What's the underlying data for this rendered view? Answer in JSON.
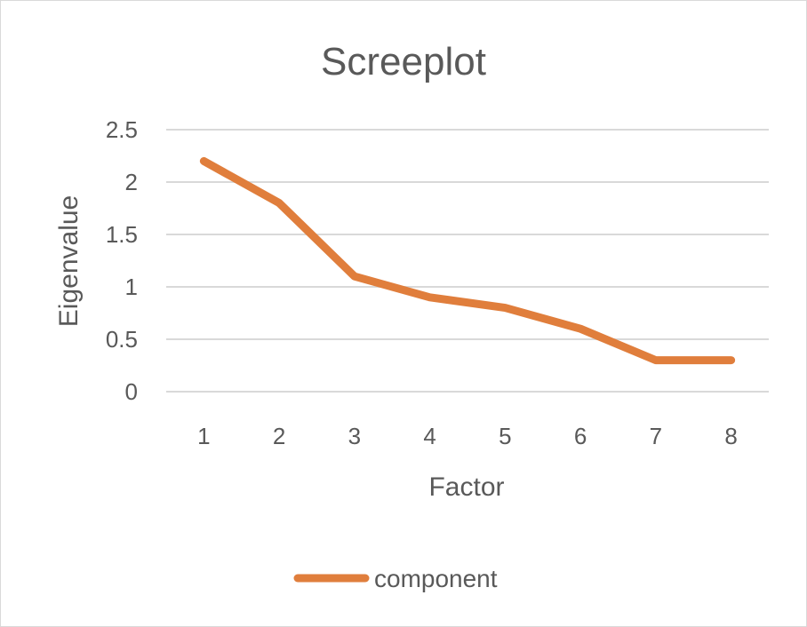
{
  "chart_data": {
    "type": "line",
    "title": "Screeplot",
    "xlabel": "Factor",
    "ylabel": "Eigenvalue",
    "categories": [
      "1",
      "2",
      "3",
      "4",
      "5",
      "6",
      "7",
      "8"
    ],
    "series": [
      {
        "name": "component",
        "values": [
          2.2,
          1.8,
          1.1,
          0.9,
          0.8,
          0.6,
          0.3,
          0.3
        ]
      }
    ],
    "ylim": [
      0,
      2.5
    ],
    "yticks": [
      "0",
      "0.5",
      "1",
      "1.5",
      "2",
      "2.5"
    ],
    "grid": true,
    "legend_position": "bottom",
    "colors": {
      "series": "#E07E3C",
      "grid": "#d9d9d9",
      "text": "#595959"
    }
  }
}
